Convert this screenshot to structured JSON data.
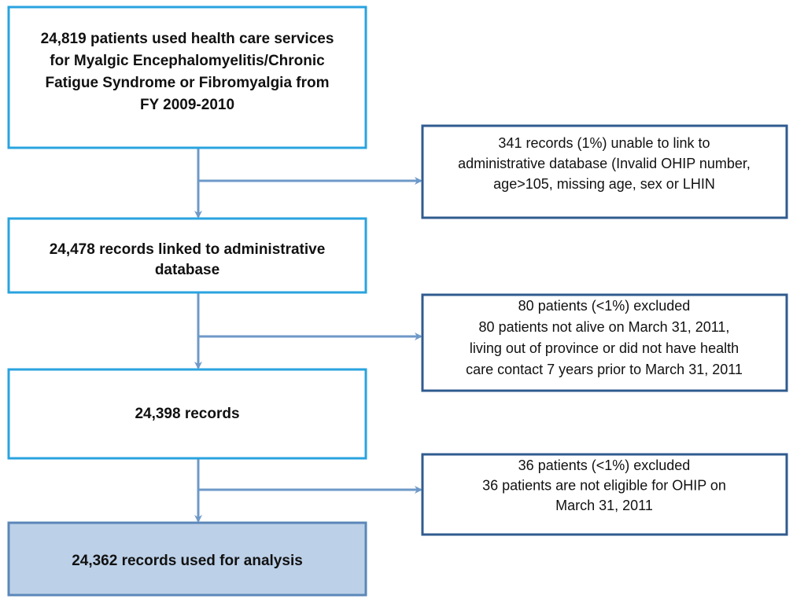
{
  "nodes": [
    {
      "lines": [
        "24,819 patients used health care services",
        "for Myalgic Encephalomyelitis/Chronic",
        "Fatigue Syndrome or Fibromyalgia from",
        "FY 2009-2010"
      ]
    },
    {
      "lines": [
        "24,478 records linked to administrative",
        "database"
      ]
    },
    {
      "lines": [
        "24,398 records"
      ]
    },
    {
      "lines": [
        "24,362 records used for analysis"
      ]
    },
    {
      "lines": [
        "341 records (1%) unable to link to",
        "administrative database (Invalid OHIP number,",
        "age>105, missing age, sex or LHIN"
      ]
    },
    {
      "lines": [
        "80 patients (<1%) excluded",
        "80 patients not alive on March 31, 2011,",
        "living out of province or did not have health",
        "care contact 7 years prior to March 31, 2011"
      ]
    },
    {
      "lines": [
        "36 patients (<1%) excluded",
        "36 patients are not eligible for OHIP on",
        "March 31, 2011"
      ]
    }
  ]
}
